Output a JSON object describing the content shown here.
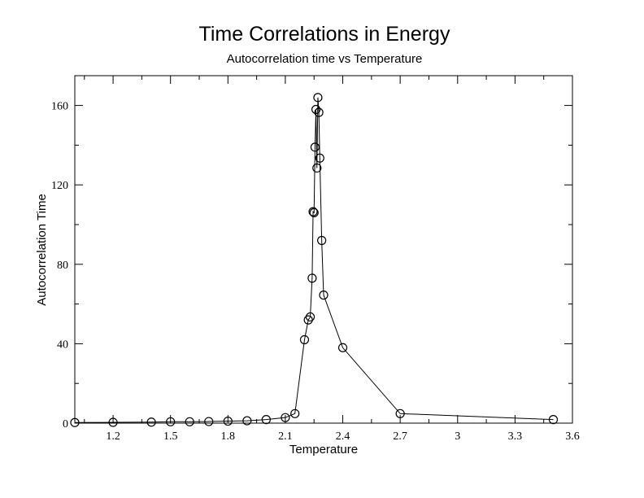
{
  "chart_data": {
    "type": "scatter",
    "title": "Time Correlations in Energy",
    "subtitle": "Autocorrelation time vs Temperature",
    "xlabel": "Temperature",
    "ylabel": "Autocorrelation Time",
    "xlim": [
      1.0,
      3.6
    ],
    "ylim": [
      0,
      175
    ],
    "xticks": [
      1.2,
      1.5,
      1.8,
      2.1,
      2.4,
      2.7,
      3,
      3.3,
      3.6
    ],
    "xtick_labels": [
      "1.2",
      "1.5",
      "1.8",
      "2.1",
      "2.4",
      "2.7",
      "3",
      "3.3",
      "3.6"
    ],
    "yticks": [
      0,
      40,
      80,
      120,
      160
    ],
    "ytick_labels": [
      "0",
      "40",
      "80",
      "120",
      "160"
    ],
    "x_minor_step": 0.15,
    "y_minor_step": 20,
    "grid": false,
    "marker": "open-circle",
    "line": "connected",
    "series": [
      {
        "x": [
          1.0,
          1.2,
          1.4,
          1.5,
          1.6,
          1.7,
          1.8,
          1.9,
          2.0,
          2.1,
          2.15,
          2.2,
          2.22,
          2.23,
          2.24,
          2.245,
          2.25,
          2.255,
          2.26,
          2.265,
          2.27,
          2.275,
          2.28,
          2.29,
          2.3,
          2.4,
          2.7,
          3.5
        ],
        "y": [
          0.3,
          0.4,
          0.5,
          0.7,
          0.7,
          0.8,
          1.0,
          1.2,
          1.8,
          2.8,
          4.8,
          42,
          52,
          53.5,
          73,
          106.5,
          106,
          139,
          158,
          128.5,
          164,
          156.5,
          133.5,
          92,
          64.5,
          38,
          4.8,
          1.8
        ]
      }
    ],
    "color": "#000000"
  }
}
